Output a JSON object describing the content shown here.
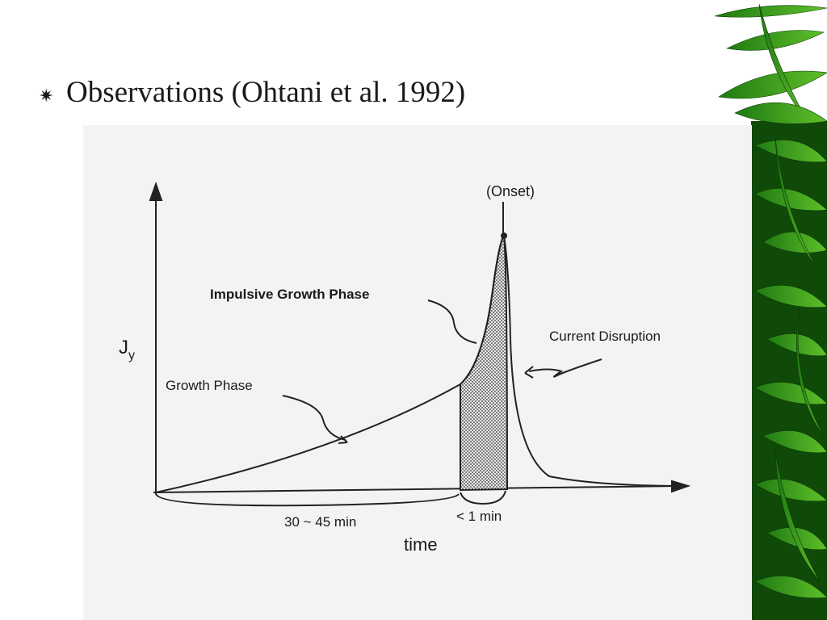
{
  "slide": {
    "bullet": "Observations (Ohtani et al. 1992)"
  },
  "diagram": {
    "onset": "(Onset)",
    "impulsive_growth_phase": "Impulsive Growth Phase",
    "current_disruption": "Current Disruption",
    "y_axis_label": {
      "main": "J",
      "sub": "y"
    },
    "growth_phase": "Growth Phase",
    "growth_duration": "30 ~ 45 min",
    "impulsive_duration": "< 1 min",
    "x_axis_label": "time"
  }
}
